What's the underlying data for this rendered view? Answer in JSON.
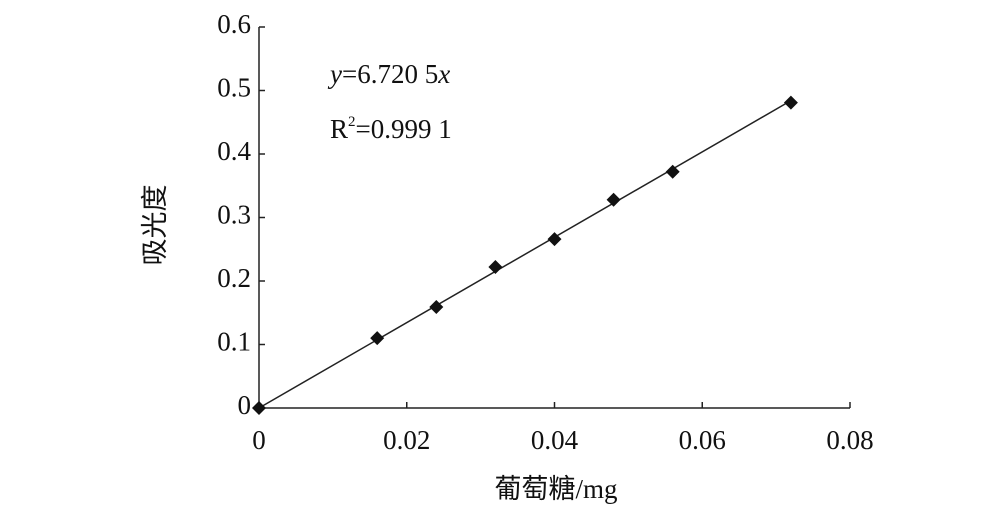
{
  "chart_data": {
    "type": "scatter",
    "x_label": "葡萄糖/mg",
    "y_label": "吸光度",
    "equation": [
      "y",
      "=6.720 5",
      "x"
    ],
    "r_squared": [
      "R",
      "2",
      "=0.999 1"
    ],
    "x": [
      0,
      0.016,
      0.024,
      0.032,
      0.04,
      0.048,
      0.056,
      0.072
    ],
    "values": [
      0,
      0.11,
      0.159,
      0.222,
      0.266,
      0.328,
      0.372,
      0.481
    ],
    "color": "#111111",
    "fit": {
      "x": [
        0,
        0.072
      ],
      "values": [
        0,
        0.484
      ]
    },
    "xlim": [
      0,
      0.08
    ],
    "xticks": [
      0,
      0.02,
      0.04,
      0.06,
      0.08
    ],
    "ylim": [
      0,
      0.6
    ],
    "yticks": [
      0,
      0.1,
      0.2,
      0.3,
      0.4,
      0.5,
      0.6
    ]
  }
}
